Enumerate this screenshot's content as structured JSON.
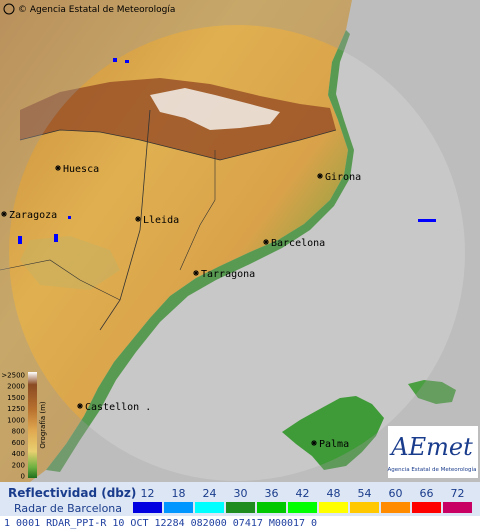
{
  "header": {
    "copyright": "© Agencia Estatal de Meteorología"
  },
  "map": {
    "cities": [
      "Huesca",
      "Girona",
      "Zaragoza",
      "Lleida",
      "Barcelona",
      "Tarragona",
      "Castellon .",
      "Palma"
    ]
  },
  "orography": {
    "title": "Orografía (m)",
    "levels": [
      ">2500",
      "2000",
      "1500",
      "1250",
      "1000",
      "800",
      "600",
      "400",
      "200",
      "0"
    ]
  },
  "logo": {
    "name": "AEmet",
    "subtitle": "Agencia Estatal de Meteorología"
  },
  "legend": {
    "title": "Reflectividad (dbz)",
    "radar": "Radar de Barcelona",
    "levels": [
      {
        "label": 12,
        "color": "#0000e0"
      },
      {
        "label": 18,
        "color": "#0096ff"
      },
      {
        "label": 24,
        "color": "#00ffff"
      },
      {
        "label": 30,
        "color": "#1e8c1e"
      },
      {
        "label": 36,
        "color": "#00c800"
      },
      {
        "label": 42,
        "color": "#00ff00"
      },
      {
        "label": 48,
        "color": "#ffff00"
      },
      {
        "label": 54,
        "color": "#ffc800"
      },
      {
        "label": 60,
        "color": "#ff8c00"
      },
      {
        "label": 66,
        "color": "#ff0000"
      },
      {
        "label": 72,
        "color": "#c80064"
      }
    ]
  },
  "status": "1 0001 RDAR_PPI-R  10 OCT 12284 082000 07417 M00017 0"
}
